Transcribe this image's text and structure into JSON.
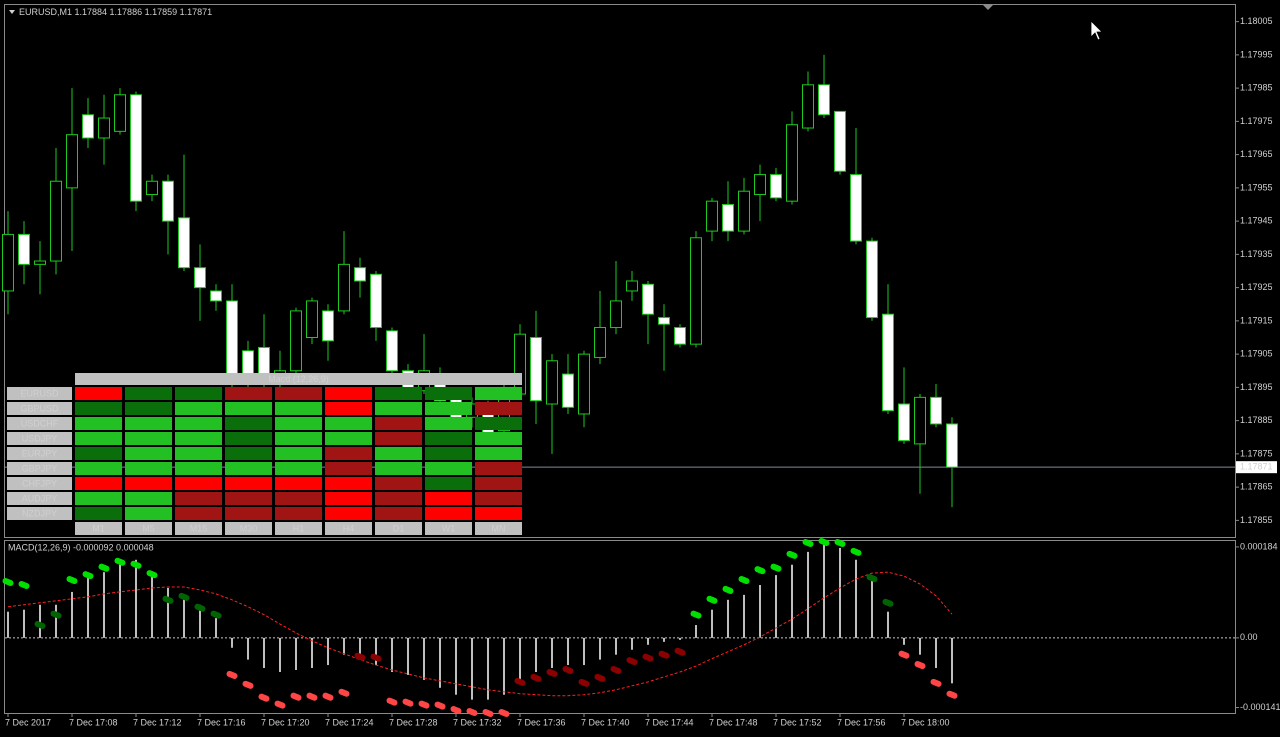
{
  "chart_data": [
    {
      "type": "candlestick",
      "title": "EURUSD,M1  1.17884 1.17886 1.17859 1.17871",
      "categories": [
        "7 Dec 2017",
        null,
        null,
        null,
        "7 Dec 17:08",
        null,
        null,
        null,
        "7 Dec 17:12",
        null,
        null,
        null,
        "7 Dec 17:16",
        null,
        null,
        null,
        "7 Dec 17:20",
        null,
        null,
        null,
        "7 Dec 17:24",
        null,
        null,
        null,
        "7 Dec 17:28",
        null,
        null,
        null,
        "7 Dec 17:32",
        null,
        null,
        null,
        "7 Dec 17:36",
        null,
        null,
        null,
        "7 Dec 17:40",
        null,
        null,
        null,
        "7 Dec 17:44",
        null,
        null,
        null,
        "7 Dec 17:48",
        null,
        null,
        null,
        "7 Dec 17:52",
        null,
        null,
        null,
        "7 Dec 17:56",
        null,
        null,
        null,
        "7 Dec 18:00",
        null,
        null,
        null
      ],
      "open": [
        1.17924,
        1.17941,
        1.17932,
        1.17933,
        1.17955,
        1.17977,
        1.1797,
        1.17972,
        1.17983,
        1.17953,
        1.17957,
        1.17946,
        1.17931,
        1.17924,
        1.17921,
        1.17906,
        1.17907,
        1.17896,
        1.179,
        1.1791,
        1.17918,
        1.17918,
        1.17931,
        1.17929,
        1.17912,
        1.179,
        1.17894,
        1.17898,
        1.17892,
        1.17886,
        1.1789,
        1.17882,
        1.17893,
        1.1791,
        1.1789,
        1.17899,
        1.17887,
        1.17904,
        1.17913,
        1.17924,
        1.17926,
        1.17916,
        1.17913,
        1.17908,
        1.17942,
        1.1795,
        1.17942,
        1.17953,
        1.17959,
        1.17951,
        1.17973,
        1.17986,
        1.17978,
        1.17959,
        1.17939,
        1.17917,
        1.1789,
        1.17878,
        1.17892,
        1.17884
      ],
      "high": [
        1.17948,
        1.17945,
        1.17939,
        1.17967,
        1.17985,
        1.17982,
        1.17983,
        1.17985,
        1.17984,
        1.17959,
        1.17959,
        1.17965,
        1.17938,
        1.17926,
        1.17926,
        1.17909,
        1.17917,
        1.17906,
        1.17919,
        1.17922,
        1.1792,
        1.17942,
        1.17934,
        1.1793,
        1.17913,
        1.17902,
        1.17911,
        1.17901,
        1.17894,
        1.17892,
        1.17891,
        1.17896,
        1.17914,
        1.17918,
        1.17905,
        1.17905,
        1.17906,
        1.17924,
        1.17933,
        1.1793,
        1.17927,
        1.1792,
        1.17914,
        1.17942,
        1.17952,
        1.17957,
        1.17958,
        1.17962,
        1.17961,
        1.17978,
        1.1799,
        1.17995,
        1.17978,
        1.17973,
        1.1794,
        1.17926,
        1.17901,
        1.17893,
        1.17896,
        1.17886
      ],
      "low": [
        1.17917,
        1.17926,
        1.17923,
        1.17929,
        1.17936,
        1.17967,
        1.17962,
        1.17971,
        1.17948,
        1.17951,
        1.17935,
        1.1793,
        1.17915,
        1.17918,
        1.17893,
        1.17894,
        1.17895,
        1.17893,
        1.17897,
        1.17908,
        1.17903,
        1.17917,
        1.17922,
        1.17909,
        1.17896,
        1.17892,
        1.17893,
        1.1789,
        1.17884,
        1.17883,
        1.17879,
        1.1788,
        1.17892,
        1.17884,
        1.17875,
        1.17887,
        1.17883,
        1.17902,
        1.17911,
        1.17921,
        1.17908,
        1.179,
        1.17907,
        1.17907,
        1.17939,
        1.17939,
        1.17941,
        1.17945,
        1.17951,
        1.1795,
        1.17972,
        1.17976,
        1.17959,
        1.17938,
        1.17915,
        1.17887,
        1.17878,
        1.17863,
        1.17883,
        1.17859
      ],
      "close": [
        1.17941,
        1.17932,
        1.17933,
        1.17957,
        1.17971,
        1.1797,
        1.17976,
        1.17983,
        1.17951,
        1.17957,
        1.17945,
        1.17931,
        1.17925,
        1.17921,
        1.17896,
        1.17897,
        1.17897,
        1.179,
        1.17918,
        1.17921,
        1.17909,
        1.17932,
        1.17927,
        1.17913,
        1.179,
        1.17894,
        1.179,
        1.17891,
        1.17885,
        1.1789,
        1.17881,
        1.17893,
        1.17911,
        1.17891,
        1.17903,
        1.17889,
        1.17905,
        1.17913,
        1.17921,
        1.17927,
        1.17917,
        1.17914,
        1.17908,
        1.1794,
        1.17951,
        1.17942,
        1.17954,
        1.17959,
        1.17952,
        1.17974,
        1.17986,
        1.17977,
        1.1796,
        1.17939,
        1.17916,
        1.17888,
        1.17879,
        1.17892,
        1.17884,
        1.17871
      ],
      "color": "#1ec81e",
      "bull_fill": "#000000",
      "bear_fill": "#ffffff",
      "current_price": 1.17871,
      "ylim": [
        1.1785,
        1.1801
      ],
      "yticks": [
        1.17855,
        1.17865,
        1.17875,
        1.17885,
        1.17895,
        1.17905,
        1.17915,
        1.17925,
        1.17935,
        1.17945,
        1.17955,
        1.17965,
        1.17975,
        1.17985,
        1.17995,
        1.18005
      ]
    },
    {
      "type": "macd",
      "title": "MACD(12,26,9) -0.000092 0.000048",
      "ylim": [
        -0.000152,
        0.000196
      ],
      "yticks": [
        -0.000141,
        {
          "value": 0,
          "label": "0.00"
        },
        0.000184
      ],
      "series": [
        {
          "type": "bar",
          "color": "#ffffff",
          "values": [
            5.3e-05,
            5.7e-05,
            6.7e-05,
            6.7e-05,
            9.3e-05,
            0.000121,
            0.000133,
            0.000148,
            0.000158,
            0.000133,
            0.000101,
            8.1e-05,
            6.7e-05,
            4e-05,
            -2e-05,
            -4.4e-05,
            -6.1e-05,
            -6.9e-05,
            -6.5e-05,
            -6.1e-05,
            -5.5e-05,
            -3.4e-05,
            -3.4e-05,
            -5.5e-05,
            -6.9e-05,
            -7.5e-05,
            -8.5e-05,
            -0.000101,
            -0.000115,
            -0.000125,
            -0.000125,
            -0.000115,
            -8.5e-05,
            -6.9e-05,
            -6.1e-05,
            -5.5e-05,
            -5.5e-05,
            -4.4e-05,
            -3.4e-05,
            -2.4e-05,
            -1.4e-05,
            -8e-06,
            -4e-06,
            2.6e-05,
            5.7e-05,
            7.7e-05,
            8.7e-05,
            0.000107,
            0.000127,
            0.000148,
            0.000174,
            0.000188,
            0.000182,
            0.000158,
            0.000121,
            5.3e-05,
            -1.4e-05,
            -3.4e-05,
            -6.1e-05,
            -9.2e-05
          ]
        },
        {
          "type": "line",
          "color": "#ff2020",
          "dashed": true,
          "values": [
            6.3e-05,
            6.7e-05,
            7.1e-05,
            7.5e-05,
            7.9e-05,
            8.3e-05,
            8.9e-05,
            9.3e-05,
            9.7e-05,
            0.000101,
            0.000103,
            0.000103,
            9.7e-05,
            8.9e-05,
            7.7e-05,
            6.3e-05,
            4.7e-05,
            2.8e-05,
            1e-05,
            -6e-06,
            -2e-05,
            -3.2e-05,
            -4.4e-05,
            -5.5e-05,
            -6.5e-05,
            -7.3e-05,
            -8.1e-05,
            -8.7e-05,
            -9.3e-05,
            -9.9e-05,
            -0.000105,
            -0.000109,
            -0.000113,
            -0.000115,
            -0.000117,
            -0.000117,
            -0.000115,
            -0.000111,
            -0.000105,
            -9.7e-05,
            -8.9e-05,
            -7.9e-05,
            -6.9e-05,
            -5.7e-05,
            -4.2e-05,
            -2.8e-05,
            -1.4e-05,
            2e-06,
            2e-05,
            3.8e-05,
            5.9e-05,
            8.1e-05,
            0.000101,
            0.000119,
            0.000131,
            0.000133,
            0.000125,
            0.000109,
            8.5e-05,
            4.8e-05
          ]
        },
        {
          "type": "dots",
          "colors": [
            "#00e000",
            "#00e000",
            "#006400",
            "#006400",
            "#00e000",
            "#00e000",
            "#00e000",
            "#00e000",
            "#00e000",
            "#00e000",
            "#006400",
            "#006400",
            "#006400",
            "#006400",
            "#ff4545",
            "#ff4545",
            "#ff4545",
            "#ff4545",
            "#ff4545",
            "#ff4545",
            "#ff4545",
            "#ff4545",
            "#8b0000",
            "#8b0000",
            "#ff4545",
            "#ff4545",
            "#ff4545",
            "#ff4545",
            "#ff4545",
            "#ff4545",
            "#ff4545",
            "#ff4545",
            "#8b0000",
            "#8b0000",
            "#8b0000",
            "#8b0000",
            "#8b0000",
            "#8b0000",
            "#8b0000",
            "#8b0000",
            "#8b0000",
            "#8b0000",
            "#8b0000",
            "#00e000",
            "#00e000",
            "#00e000",
            "#00e000",
            "#00e000",
            "#00e000",
            "#00e000",
            "#00e000",
            "#00e000",
            "#00e000",
            "#00e000",
            "#006400",
            "#006400",
            "#ff4545",
            "#ff4545",
            "#ff4545",
            "#ff4545"
          ],
          "values": [
            0.000113,
            0.000107,
            2.6e-05,
            4.7e-05,
            0.000117,
            0.000127,
            0.000142,
            0.000154,
            0.000148,
            0.000129,
            7.7e-05,
            8.3e-05,
            6.1e-05,
            4.7e-05,
            -7.5e-05,
            -9.5e-05,
            -0.000121,
            -0.000135,
            -0.000119,
            -0.000119,
            -0.000119,
            -0.000111,
            -3.8e-05,
            -4e-05,
            -0.000129,
            -0.000131,
            -0.000135,
            -0.000137,
            -0.000146,
            -0.00015,
            -0.000152,
            -0.000152,
            -8.9e-05,
            -8.1e-05,
            -7.1e-05,
            -6.5e-05,
            -9.1e-05,
            -8.1e-05,
            -6.5e-05,
            -4.7e-05,
            -4e-05,
            -3.4e-05,
            -2.8e-05,
            4.7e-05,
            7.7e-05,
            9.7e-05,
            0.000117,
            0.000137,
            0.000142,
            0.000168,
            0.000192,
            0.000194,
            0.000192,
            0.000174,
            0.000121,
            7.1e-05,
            -3.4e-05,
            -5.5e-05,
            -9.1e-05,
            -0.000115
          ]
        }
      ]
    }
  ],
  "table": {
    "title": "Macd (12,26,9)",
    "columns": [
      "M1",
      "M5",
      "M15",
      "M30",
      "H1",
      "H4",
      "D1",
      "W1",
      "MN"
    ],
    "rows": [
      {
        "label": "EURUSD",
        "cells": [
          "#ff0000",
          "#0a6e0a",
          "#0a6e0a",
          "#a01414",
          "#a01414",
          "#ff0000",
          "#0a6e0a",
          "#0a6e0a",
          "#22c022"
        ]
      },
      {
        "label": "GBPUSD",
        "cells": [
          "#0a6e0a",
          "#0a6e0a",
          "#22c022",
          "#22c022",
          "#22c022",
          "#ff0000",
          "#22c022",
          "#22c022",
          "#a01414"
        ]
      },
      {
        "label": "USDCHF",
        "cells": [
          "#22c022",
          "#22c022",
          "#22c022",
          "#0a6e0a",
          "#22c022",
          "#22c022",
          "#a01414",
          "#22c022",
          "#0a6e0a"
        ]
      },
      {
        "label": "USDJPY",
        "cells": [
          "#22c022",
          "#22c022",
          "#22c022",
          "#0a6e0a",
          "#22c022",
          "#22c022",
          "#a01414",
          "#0a6e0a",
          "#22c022"
        ]
      },
      {
        "label": "EURJPY",
        "cells": [
          "#0a6e0a",
          "#22c022",
          "#22c022",
          "#0a6e0a",
          "#22c022",
          "#a01414",
          "#22c022",
          "#0a6e0a",
          "#22c022"
        ]
      },
      {
        "label": "GBPJPY",
        "cells": [
          "#22c022",
          "#22c022",
          "#22c022",
          "#22c022",
          "#22c022",
          "#a01414",
          "#22c022",
          "#22c022",
          "#a01414"
        ]
      },
      {
        "label": "CHFJPY",
        "cells": [
          "#ff0000",
          "#ff0000",
          "#ff0000",
          "#ff0000",
          "#ff0000",
          "#ff0000",
          "#a01414",
          "#0a6e0a",
          "#a01414"
        ]
      },
      {
        "label": "AUDJPY",
        "cells": [
          "#22c022",
          "#22c022",
          "#a01414",
          "#a01414",
          "#a01414",
          "#ff0000",
          "#a01414",
          "#ff0000",
          "#a01414"
        ]
      },
      {
        "label": "NZDJPY",
        "cells": [
          "#0a6e0a",
          "#22c022",
          "#a01414",
          "#a01414",
          "#a01414",
          "#ff0000",
          "#a01414",
          "#ff0000",
          "#ff0000"
        ]
      }
    ]
  }
}
